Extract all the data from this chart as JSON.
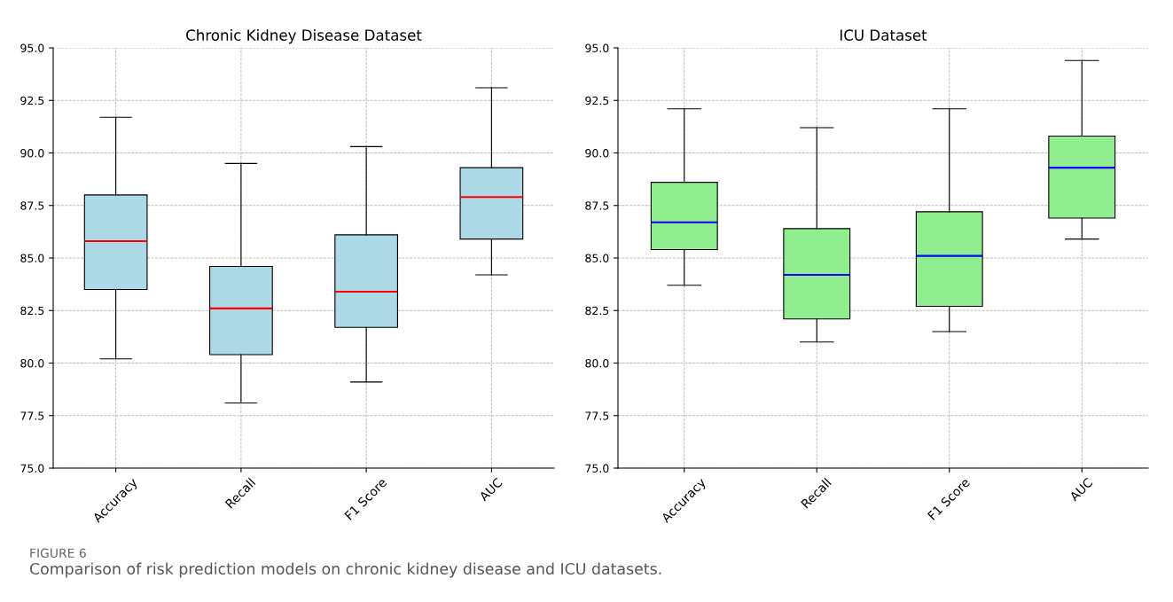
{
  "chart_data": [
    {
      "type": "box",
      "title": "Chronic Kidney Disease Dataset",
      "categories": [
        "Accuracy",
        "Recall",
        "F1 Score",
        "AUC"
      ],
      "ylim": [
        75.0,
        95.0
      ],
      "yticks": [
        {
          "value": 75,
          "label": "75.0"
        },
        {
          "value": 77.5,
          "label": "77.5"
        },
        {
          "value": 80,
          "label": "80.0"
        },
        {
          "value": 82.5,
          "label": "82.5"
        },
        {
          "value": 85,
          "label": "85.0"
        },
        {
          "value": 87.5,
          "label": "87.5"
        },
        {
          "value": 90,
          "label": "90.0"
        },
        {
          "value": 92.5,
          "label": "92.5"
        },
        {
          "value": 95,
          "label": "95.0"
        }
      ],
      "grid": true,
      "series": [
        {
          "color": "#add8e6",
          "boxes": [
            {
              "low": 80.2,
              "q1": 83.5,
              "median": 85.8,
              "q3": 88.0,
              "high": 91.7
            },
            {
              "low": 78.1,
              "q1": 80.4,
              "median": 82.6,
              "q3": 84.6,
              "high": 89.5
            },
            {
              "low": 79.1,
              "q1": 81.7,
              "median": 83.4,
              "q3": 86.1,
              "high": 90.3
            },
            {
              "low": 84.2,
              "q1": 85.9,
              "median": 87.9,
              "q3": 89.3,
              "high": 93.1
            }
          ]
        }
      ],
      "annotations": [
        "FIGURE 6",
        "Comparison of risk prediction models on chronic kidney disease and ICU datasets."
      ]
    },
    {
      "type": "box",
      "title": "ICU Dataset",
      "categories": [
        "Accuracy",
        "Recall",
        "F1 Score",
        "AUC"
      ],
      "ylim": [
        75.0,
        95.0
      ],
      "yticks": [
        {
          "value": 75,
          "label": "75.0"
        },
        {
          "value": 77.5,
          "label": "77.5"
        },
        {
          "value": 80,
          "label": "80.0"
        },
        {
          "value": 82.5,
          "label": "82.5"
        },
        {
          "value": 85,
          "label": "85.0"
        },
        {
          "value": 87.5,
          "label": "87.5"
        },
        {
          "value": 90,
          "label": "90.0"
        },
        {
          "value": 92.5,
          "label": "92.5"
        },
        {
          "value": 95,
          "label": "95.0"
        }
      ],
      "grid": true,
      "series": [
        {
          "color": "#90ee90",
          "boxes": [
            {
              "low": 83.7,
              "q1": 85.4,
              "median": 86.7,
              "q3": 88.6,
              "high": 92.1
            },
            {
              "low": 81.0,
              "q1": 82.1,
              "median": 84.2,
              "q3": 86.4,
              "high": 91.2
            },
            {
              "low": 81.5,
              "q1": 82.7,
              "median": 85.1,
              "q3": 87.2,
              "high": 92.1
            },
            {
              "low": 85.9,
              "q1": 86.9,
              "median": 89.3,
              "q3": 90.8,
              "high": 94.4
            }
          ]
        }
      ]
    }
  ]
}
